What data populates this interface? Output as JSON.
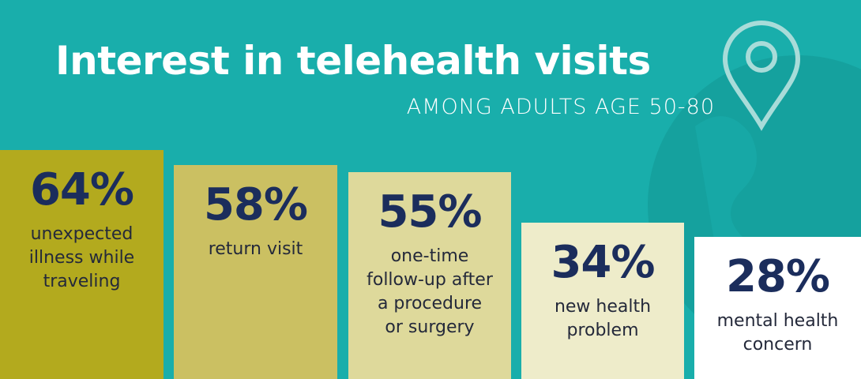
{
  "chart_data": {
    "type": "bar",
    "title": "Interest in telehealth visits",
    "subtitle": "AMONG ADULTS AGE 50-80",
    "categories": [
      "unexpected illness while traveling",
      "return visit",
      "one-time follow-up after a procedure or surgery",
      "new health problem",
      "mental health concern"
    ],
    "values": [
      64,
      58,
      55,
      34,
      28
    ],
    "value_labels": [
      "64%",
      "58%",
      "55%",
      "34%",
      "28%"
    ],
    "colors": [
      "#b3aa1e",
      "#cbc062",
      "#ded99b",
      "#eeecca",
      "#ffffff"
    ]
  }
}
